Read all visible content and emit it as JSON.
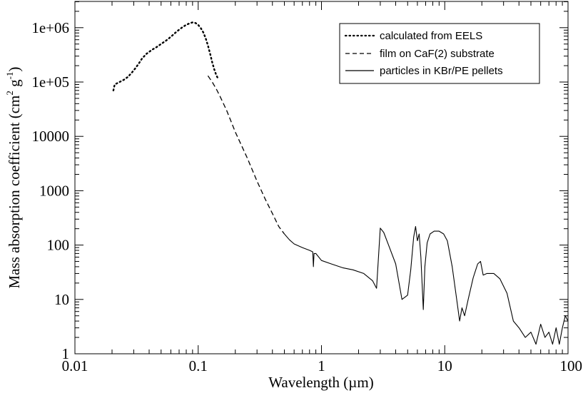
{
  "chart_data": {
    "type": "line",
    "title": "",
    "xlabel": "Wavelength (µm)",
    "ylabel_parts": {
      "main": "Mass absorption coefficient (cm",
      "exp1": "2",
      "mid": " g",
      "exp2": "-1",
      "close": ")"
    },
    "xscale": "log",
    "yscale": "log",
    "xlim": [
      0.01,
      100
    ],
    "ylim": [
      1,
      5000000
    ],
    "x_ticks": [
      0.01,
      0.1,
      1,
      10,
      100
    ],
    "x_tick_labels": [
      "0.01",
      "0.1",
      "1",
      "10",
      "100"
    ],
    "y_ticks": [
      1,
      10,
      100,
      1000,
      10000,
      100000,
      1000000
    ],
    "y_tick_labels": [
      "1",
      "10",
      "100",
      "1000",
      "10000",
      "1e+05",
      "1e+06"
    ],
    "legend_position": "top-right",
    "grid": false,
    "series": [
      {
        "name": "calculated from EELS",
        "style": "dotted",
        "x": [
          0.0205,
          0.021,
          0.022,
          0.023,
          0.025,
          0.027,
          0.029,
          0.031,
          0.033,
          0.035,
          0.038,
          0.042,
          0.046,
          0.05,
          0.055,
          0.06,
          0.065,
          0.07,
          0.075,
          0.08,
          0.085,
          0.09,
          0.095,
          0.1,
          0.105,
          0.11,
          0.115,
          0.12,
          0.125,
          0.13,
          0.135,
          0.14,
          0.145
        ],
        "y": [
          70000,
          90000,
          95000,
          100000,
          110000,
          125000,
          150000,
          180000,
          220000,
          270000,
          330000,
          390000,
          440000,
          500000,
          580000,
          680000,
          800000,
          920000,
          1030000,
          1130000,
          1200000,
          1250000,
          1220000,
          1120000,
          980000,
          820000,
          640000,
          470000,
          330000,
          230000,
          170000,
          135000,
          115000
        ]
      },
      {
        "name": "film on CaF(2) substrate",
        "style": "dashed",
        "x": [
          0.12,
          0.13,
          0.14,
          0.15,
          0.17,
          0.2,
          0.25,
          0.3,
          0.35,
          0.4,
          0.45,
          0.5
        ],
        "y": [
          130000,
          100000,
          75000,
          55000,
          30000,
          12000,
          4000,
          1500,
          700,
          380,
          220,
          160
        ]
      },
      {
        "name": "particles in KBr/PE pellets",
        "style": "solid",
        "x": [
          0.5,
          0.55,
          0.6,
          0.7,
          0.8,
          0.85,
          0.86,
          0.87,
          0.9,
          1.0,
          1.2,
          1.5,
          1.8,
          2.2,
          2.6,
          2.8,
          2.9,
          3.0,
          3.2,
          3.5,
          4.0,
          4.5,
          5.0,
          5.3,
          5.6,
          5.8,
          6.0,
          6.2,
          6.4,
          6.7,
          6.9,
          7.2,
          7.6,
          8.2,
          9.0,
          9.8,
          10.5,
          11.5,
          12.5,
          13.2,
          13.8,
          14.5,
          15.5,
          17.0,
          18.5,
          19.5,
          20.5,
          22.0,
          25.0,
          28.0,
          32.0,
          36.0,
          40.0,
          45.0,
          50.0,
          55.0,
          60.0,
          65.0,
          70.0,
          75.0,
          80.0,
          85.0,
          90.0,
          95.0,
          100.0
        ],
        "y": [
          160,
          125,
          105,
          90,
          80,
          75,
          40,
          70,
          70,
          52,
          45,
          38,
          35,
          30,
          22,
          16,
          60,
          205,
          170,
          100,
          45,
          10,
          12,
          35,
          140,
          220,
          120,
          160,
          60,
          6.5,
          40,
          110,
          160,
          180,
          180,
          160,
          120,
          40,
          10,
          4,
          7,
          5,
          10,
          25,
          45,
          50,
          28,
          30,
          30,
          24,
          13,
          4,
          3,
          2,
          2.5,
          1.5,
          3.5,
          2,
          2.5,
          1.5,
          3,
          1.5,
          3,
          5,
          4
        ]
      }
    ]
  }
}
